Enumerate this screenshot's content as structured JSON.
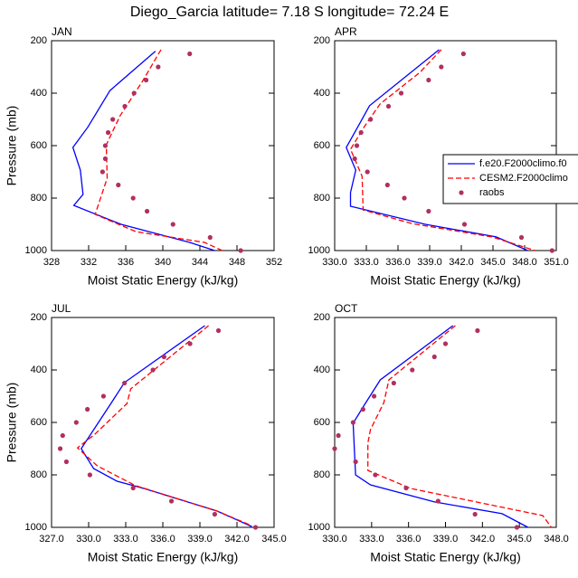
{
  "title": "Diego_Garcia  latitude= 7.18 S longitude= 72.24 E",
  "chart_data": [
    {
      "type": "line",
      "label": "JAN",
      "xlabel": "Moist Static Energy (kJ/kg)",
      "ylabel": "Pressure (mb)",
      "xlim": [
        328,
        352
      ],
      "xticks": [
        328,
        332,
        336,
        340,
        344,
        348,
        352
      ],
      "ylim": [
        1000,
        200
      ],
      "yticks": [
        200,
        400,
        600,
        800,
        1000
      ],
      "series": [
        {
          "color": "#0000ff",
          "mode": "line",
          "dash": false,
          "x": [
            339.2,
            334.3,
            331.9,
            330.3,
            331.1,
            331.4,
            330.4,
            335.5,
            342.9,
            345.6
          ],
          "y": [
            240,
            390,
            530,
            607,
            693,
            786,
            828,
            900,
            969,
            1000
          ]
        },
        {
          "color": "#ff0000",
          "mode": "line",
          "dash": true,
          "x": [
            339.8,
            337.8,
            335.4,
            333.9,
            334.0,
            332.7,
            337.1,
            344.5,
            346.4
          ],
          "y": [
            234,
            355,
            486,
            597,
            724,
            862,
            928,
            969,
            1000
          ]
        },
        {
          "color": "#b03060",
          "mode": "markers",
          "x": [
            342.9,
            339.5,
            338.2,
            336.9,
            335.9,
            334.6,
            334.1,
            333.8,
            333.8,
            333.5,
            335.2,
            336.8,
            338.3,
            341.1,
            345.1,
            348.4
          ],
          "y": [
            250,
            300,
            350,
            400,
            450,
            500,
            550,
            600,
            650,
            700,
            750,
            800,
            850,
            900,
            950,
            1000
          ]
        }
      ]
    },
    {
      "type": "line",
      "label": "APR",
      "xlabel": "Moist Static Energy (kJ/kg)",
      "legend": "right",
      "xlim": [
        330,
        351
      ],
      "xticks": [
        {
          "value": 330,
          "label": "330.0"
        },
        {
          "value": 333,
          "label": "333.0"
        },
        {
          "value": 336,
          "label": "336.0"
        },
        {
          "value": 339,
          "label": "339.0"
        },
        {
          "value": 342,
          "label": "342.0"
        },
        {
          "value": 345,
          "label": "345.0"
        },
        {
          "value": 348,
          "label": "348.0"
        },
        {
          "value": 351,
          "label": "351.0"
        }
      ],
      "ylim": [
        1000,
        200
      ],
      "yticks": [
        200,
        400,
        600,
        800,
        1000
      ],
      "series": [
        {
          "name": "f.e20.F2000climo.f0",
          "color": "#0000ff",
          "mode": "line",
          "dash": false,
          "x": [
            339.9,
            333.3,
            332.2,
            331.1,
            332.0,
            331.5,
            331.5,
            338.6,
            345.3,
            348.3
          ],
          "y": [
            234,
            448,
            528,
            607,
            693,
            779,
            831,
            900,
            948,
            1000
          ]
        },
        {
          "name": "CESM2.F2000climo",
          "color": "#ff0000",
          "mode": "line",
          "dash": true,
          "x": [
            340.1,
            338.1,
            334.3,
            332.8,
            331.5,
            332.6,
            332.7,
            337.3,
            344.9,
            349.0
          ],
          "y": [
            234,
            320,
            441,
            528,
            614,
            717,
            845,
            897,
            948,
            1000
          ]
        },
        {
          "name": "raobs",
          "color": "#b03060",
          "mode": "markers",
          "x": [
            342.2,
            340.1,
            338.9,
            336.3,
            335.1,
            333.4,
            332.5,
            332.1,
            331.9,
            333.1,
            335.0,
            336.6,
            338.9,
            342.3,
            347.7,
            350.6
          ],
          "y": [
            250,
            300,
            350,
            400,
            450,
            500,
            550,
            600,
            650,
            700,
            750,
            800,
            850,
            900,
            950,
            1000
          ]
        }
      ]
    },
    {
      "type": "line",
      "label": "JUL",
      "xlabel": "Moist Static Energy (kJ/kg)",
      "ylabel": "Pressure (mb)",
      "xlim": [
        327,
        345
      ],
      "xticks": [
        {
          "value": 327,
          "label": "327.0"
        },
        {
          "value": 330,
          "label": "330.0"
        },
        {
          "value": 333,
          "label": "333.0"
        },
        {
          "value": 336,
          "label": "336.0"
        },
        {
          "value": 339,
          "label": "339.0"
        },
        {
          "value": 342,
          "label": "342.0"
        },
        {
          "value": 345,
          "label": "345.0"
        }
      ],
      "ylim": [
        1000,
        200
      ],
      "yticks": [
        200,
        400,
        600,
        800,
        1000
      ],
      "series": [
        {
          "color": "#0000ff",
          "mode": "line",
          "dash": false,
          "x": [
            339.4,
            332.9,
            331.8,
            329.4,
            330.4,
            332.3,
            334.5,
            340.4,
            343.2
          ],
          "y": [
            231,
            448,
            528,
            700,
            776,
            824,
            852,
            938,
            997
          ]
        },
        {
          "color": "#ff0000",
          "mode": "line",
          "dash": true,
          "x": [
            339.7,
            333.4,
            333.1,
            330.5,
            329.1,
            330.7,
            333.8,
            340.4,
            343.0
          ],
          "y": [
            231,
            472,
            528,
            645,
            697,
            766,
            841,
            938,
            990
          ]
        },
        {
          "color": "#b03060",
          "mode": "markers",
          "x": [
            340.5,
            338.2,
            336.1,
            335.2,
            332.9,
            331.2,
            329.9,
            329.0,
            327.9,
            327.7,
            328.2,
            330.1,
            333.6,
            336.7,
            340.2,
            343.5
          ],
          "y": [
            250,
            300,
            350,
            400,
            450,
            500,
            550,
            600,
            650,
            700,
            750,
            800,
            850,
            900,
            950,
            1000
          ]
        }
      ]
    },
    {
      "type": "line",
      "label": "OCT",
      "xlabel": "Moist Static Energy (kJ/kg)",
      "xlim": [
        330,
        348
      ],
      "xticks": [
        {
          "value": 330,
          "label": "330.0"
        },
        {
          "value": 333,
          "label": "333.0"
        },
        {
          "value": 336,
          "label": "336.0"
        },
        {
          "value": 339,
          "label": "339.0"
        },
        {
          "value": 342,
          "label": "342.0"
        },
        {
          "value": 345,
          "label": "345.0"
        },
        {
          "value": 348,
          "label": "348.0"
        }
      ],
      "ylim": [
        1000,
        200
      ],
      "yticks": [
        200,
        400,
        600,
        800,
        1000
      ],
      "series": [
        {
          "color": "#0000ff",
          "mode": "line",
          "dash": false,
          "x": [
            339.6,
            333.7,
            332.4,
            331.5,
            331.7,
            332.9,
            338.1,
            343.6,
            345.7
          ],
          "y": [
            231,
            438,
            534,
            603,
            800,
            838,
            903,
            948,
            1000
          ]
        },
        {
          "color": "#ff0000",
          "mode": "line",
          "dash": true,
          "x": [
            339.8,
            334.4,
            334.0,
            332.9,
            332.7,
            332.7,
            336.2,
            346.9,
            347.6
          ],
          "y": [
            231,
            438,
            524,
            628,
            679,
            783,
            852,
            955,
            1000
          ]
        },
        {
          "color": "#b03060",
          "mode": "markers",
          "x": [
            341.6,
            339.0,
            338.1,
            336.3,
            334.8,
            333.2,
            332.3,
            331.5,
            330.3,
            330.0,
            331.7,
            333.3,
            335.8,
            338.4,
            341.4,
            344.8
          ],
          "y": [
            250,
            300,
            350,
            400,
            450,
            500,
            550,
            600,
            650,
            700,
            750,
            800,
            850,
            900,
            950,
            1000
          ]
        }
      ]
    }
  ]
}
